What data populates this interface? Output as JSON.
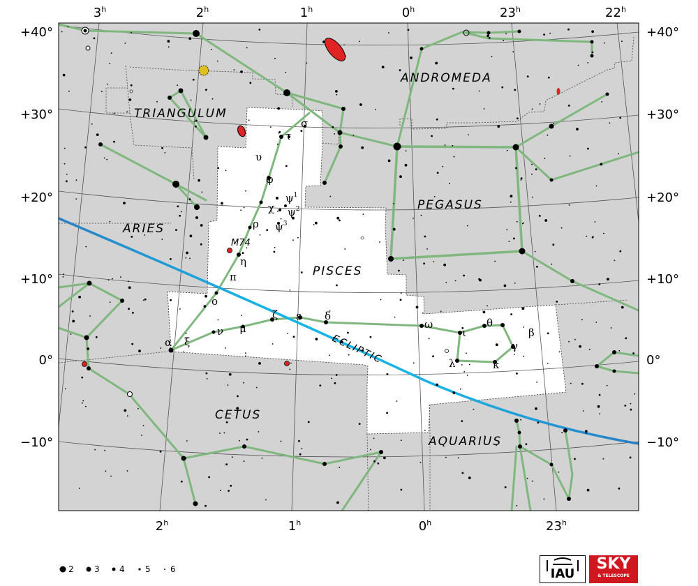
{
  "title": "",
  "ra_labels": {
    "top": [
      {
        "h": "3",
        "s": "h"
      },
      {
        "h": "2",
        "s": "h"
      },
      {
        "h": "1",
        "s": "h"
      },
      {
        "h": "0",
        "s": "h"
      },
      {
        "h": "23",
        "s": "h"
      },
      {
        "h": "22",
        "s": "h"
      }
    ],
    "bottom": [
      {
        "h": "2",
        "s": "h"
      },
      {
        "h": "1",
        "s": "h"
      },
      {
        "h": "0",
        "s": "h"
      },
      {
        "h": "23",
        "s": "h"
      }
    ]
  },
  "dec_labels": [
    "+40°",
    "+30°",
    "+20°",
    "+10°",
    "0°",
    "−10°"
  ],
  "constellation_labels": {
    "andromeda": "ANDROMEDA",
    "triangulum": "TRIANGULUM",
    "pegasus": "PEGASUS",
    "aries": "ARIES",
    "pisces": "PISCES",
    "cetus": "CETUS",
    "aquarius": "AQUARIUS"
  },
  "ecliptic_label": "ECLIPTIC",
  "deep_sky": {
    "m74": "M74"
  },
  "greek_labels": [
    {
      "k": "sigma",
      "t": "σ",
      "sup": ""
    },
    {
      "k": "tau",
      "t": "τ",
      "sup": ""
    },
    {
      "k": "upsilon",
      "t": "υ",
      "sup": ""
    },
    {
      "k": "phi",
      "t": "φ",
      "sup": ""
    },
    {
      "k": "psi1",
      "t": "ψ",
      "sup": "1"
    },
    {
      "k": "chi",
      "t": "χ",
      "sup": ""
    },
    {
      "k": "psi2",
      "t": "ψ",
      "sup": "2"
    },
    {
      "k": "rho",
      "t": "ρ",
      "sup": ""
    },
    {
      "k": "psi3",
      "t": "ψ",
      "sup": "3"
    },
    {
      "k": "eta",
      "t": "η",
      "sup": ""
    },
    {
      "k": "pi",
      "t": "π",
      "sup": ""
    },
    {
      "k": "omicron",
      "t": "ο",
      "sup": ""
    },
    {
      "k": "zeta",
      "t": "ζ",
      "sup": ""
    },
    {
      "k": "epsilon",
      "t": "ε",
      "sup": ""
    },
    {
      "k": "delta",
      "t": "δ",
      "sup": ""
    },
    {
      "k": "omega",
      "t": "ω",
      "sup": ""
    },
    {
      "k": "theta",
      "t": "θ",
      "sup": ""
    },
    {
      "k": "iota",
      "t": "ι",
      "sup": ""
    },
    {
      "k": "beta",
      "t": "β",
      "sup": ""
    },
    {
      "k": "gamma",
      "t": "γ",
      "sup": ""
    },
    {
      "k": "lambda",
      "t": "λ",
      "sup": ""
    },
    {
      "k": "kappa",
      "t": "κ",
      "sup": ""
    },
    {
      "k": "nu",
      "t": "ν",
      "sup": ""
    },
    {
      "k": "mu",
      "t": "μ",
      "sup": ""
    },
    {
      "k": "alpha",
      "t": "α",
      "sup": ""
    },
    {
      "k": "xi",
      "t": "ξ",
      "sup": ""
    }
  ],
  "legend": {
    "items": [
      {
        "label": "2"
      },
      {
        "label": "3"
      },
      {
        "label": "4"
      },
      {
        "label": "5"
      },
      {
        "label": "6"
      }
    ]
  },
  "logos": {
    "iau": "IAU",
    "sky": "SKY",
    "sky_sub": "& TELESCOPE"
  },
  "colors": {
    "background_sky": "#d3d3d3",
    "highlight_region": "#ffffff",
    "constellation_lines": "#7fb77e",
    "ecliptic": "#18b4e6",
    "grid": "#555555",
    "galaxy": "#e02424",
    "cluster": "#e0c020"
  }
}
